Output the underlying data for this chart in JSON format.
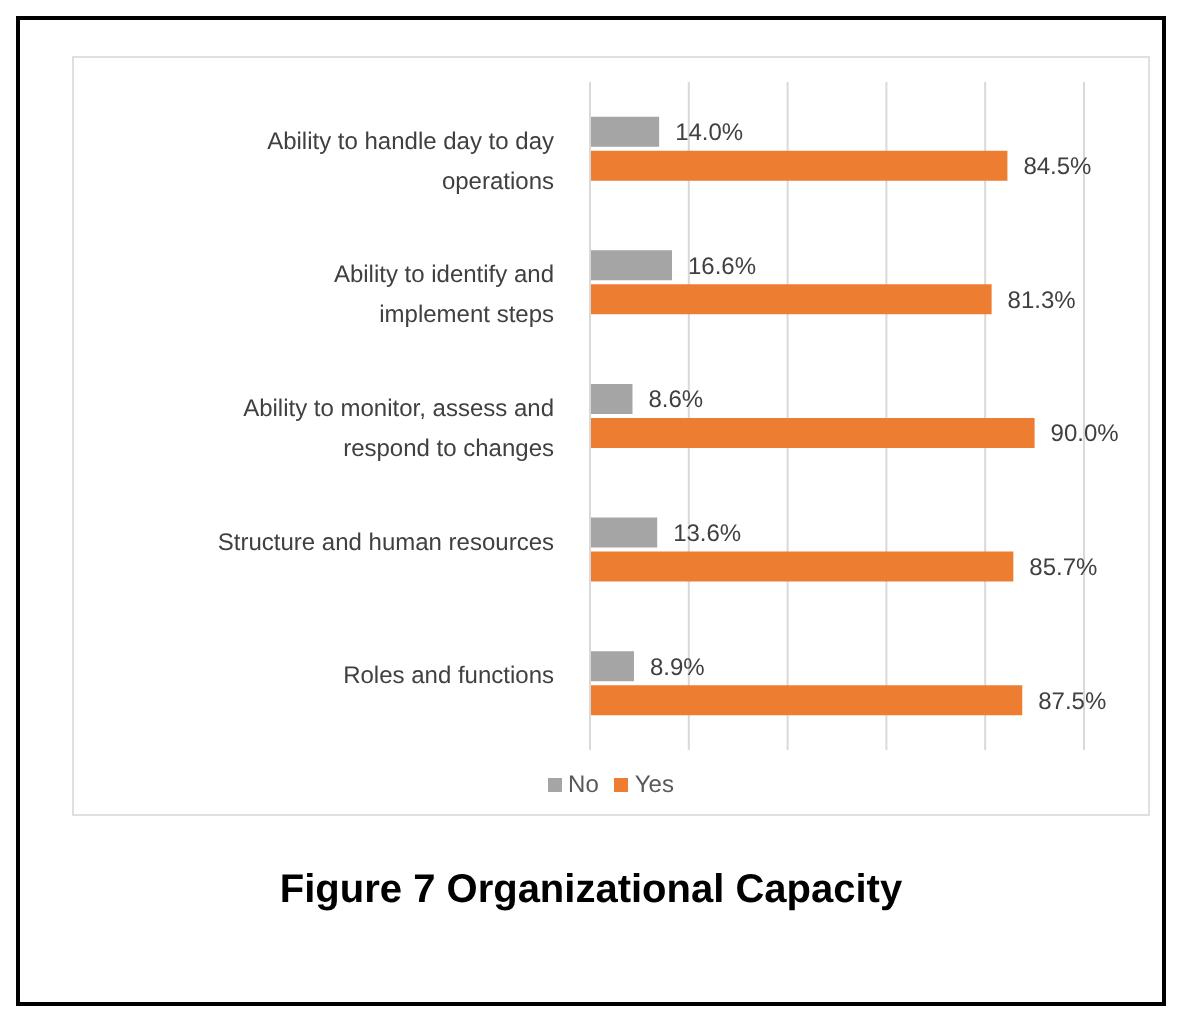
{
  "chart_data": {
    "type": "bar",
    "orientation": "horizontal",
    "title": "Figure 7 Organizational Capacity",
    "categories": [
      "Ability to handle day to day operations",
      "Ability to identify and implement steps",
      "Ability to monitor, assess and respond to changes",
      "Structure and human resources",
      "Roles and functions"
    ],
    "series": [
      {
        "name": "No",
        "color": "#a5a5a5",
        "values": [
          14.0,
          16.6,
          8.6,
          13.6,
          8.9
        ],
        "value_labels": [
          "14.0%",
          "16.6%",
          "8.6%",
          "13.6%",
          "8.9%"
        ]
      },
      {
        "name": "Yes",
        "color": "#ed7d31",
        "values": [
          84.5,
          81.3,
          90.0,
          85.7,
          87.5
        ],
        "value_labels": [
          "84.5%",
          "81.3%",
          "90.0%",
          "85.7%",
          "87.5%"
        ]
      }
    ],
    "tick_labels": "y",
    "grid": "x",
    "legend": "bottom"
  }
}
